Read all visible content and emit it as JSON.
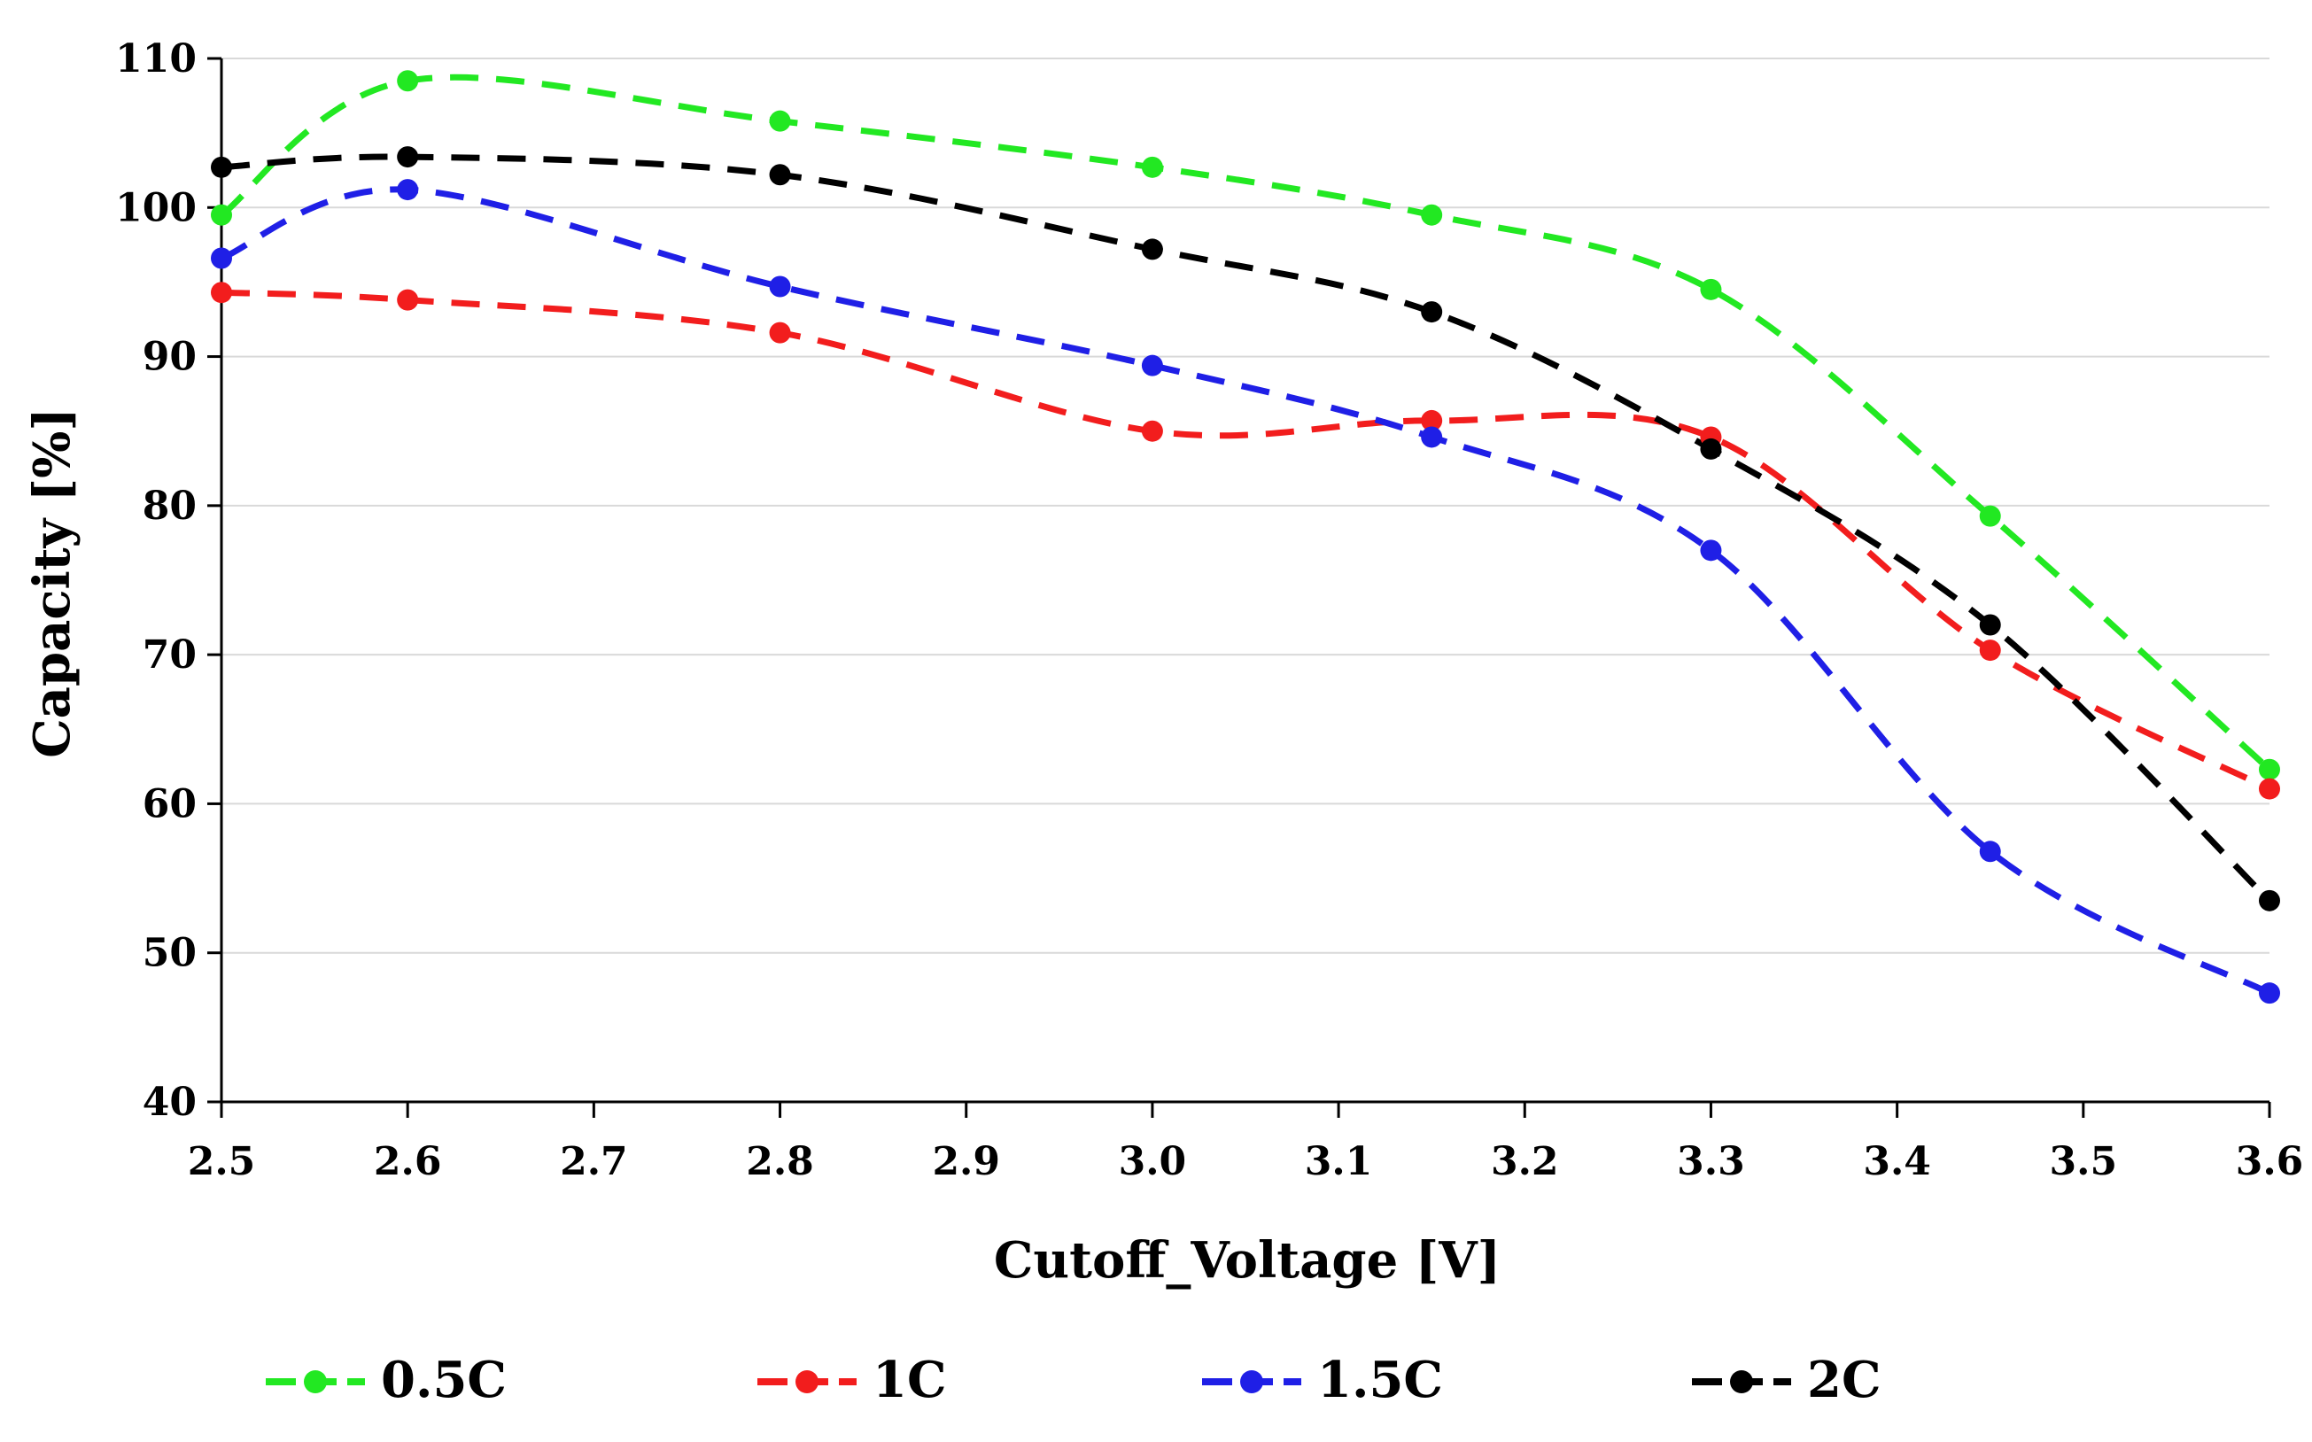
{
  "chart_data": {
    "type": "line",
    "title": "",
    "xlabel": "Cutoff_Voltage [V]",
    "ylabel": "Capacity [%]",
    "xlim": [
      2.5,
      3.6
    ],
    "ylim": [
      40,
      110
    ],
    "x_ticks": [
      "2.5",
      "2.6",
      "2.7",
      "2.8",
      "2.9",
      "3.0",
      "3.1",
      "3.2",
      "3.3",
      "3.4",
      "3.5",
      "3.6"
    ],
    "y_ticks": [
      "40",
      "50",
      "60",
      "70",
      "80",
      "90",
      "100",
      "110"
    ],
    "grid": "horizontal",
    "legend_position": "bottom",
    "x": [
      2.5,
      2.6,
      2.8,
      3.0,
      3.15,
      3.3,
      3.45,
      3.6
    ],
    "series": [
      {
        "name": "0.5C",
        "color": "#22e822",
        "values": [
          99.5,
          108.5,
          105.8,
          102.7,
          99.5,
          94.5,
          79.3,
          62.3
        ]
      },
      {
        "name": "1C",
        "color": "#f21d1d",
        "values": [
          94.3,
          93.8,
          91.6,
          85.0,
          85.7,
          84.6,
          70.3,
          61.0
        ]
      },
      {
        "name": "1.5C",
        "color": "#1f1fe6",
        "values": [
          96.6,
          101.2,
          94.7,
          89.4,
          84.6,
          77.0,
          56.8,
          47.3
        ]
      },
      {
        "name": "2C",
        "color": "#000000",
        "values": [
          102.7,
          103.4,
          102.2,
          97.2,
          93.0,
          83.8,
          72.0,
          53.5
        ]
      }
    ]
  }
}
